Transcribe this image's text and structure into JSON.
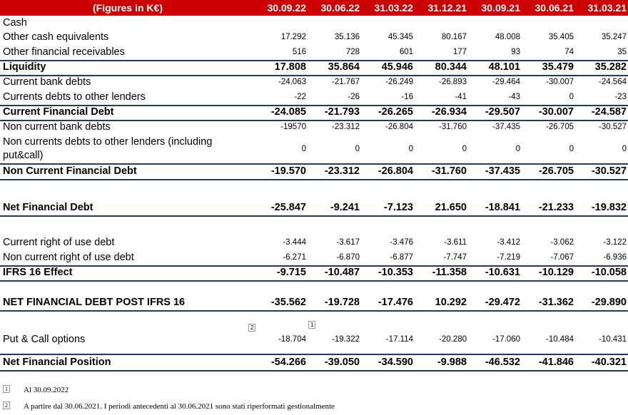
{
  "header": {
    "title": "(Figures in K€)",
    "dates": [
      "30.09.22",
      "30.06.22",
      "31.03.22",
      "31.12.21",
      "30.09.21",
      "30.06.21",
      "31.03.21"
    ]
  },
  "rows": [
    {
      "label": "Cash",
      "values": [
        "",
        "",
        "",
        "",
        "",
        "",
        ""
      ]
    },
    {
      "label": "Other cash equivalents",
      "values": [
        "17.292",
        "35.136",
        "45.345",
        "80.167",
        "48.008",
        "35.405",
        "35.247"
      ]
    },
    {
      "label": "Other financial receivables",
      "values": [
        "516",
        "728",
        "601",
        "177",
        "93",
        "74",
        "35"
      ]
    },
    {
      "label": "Liquidity",
      "values": [
        "17.808",
        "35.864",
        "45.946",
        "80.344",
        "48.101",
        "35.479",
        "35.282"
      ]
    },
    {
      "label": "Current bank debts",
      "values": [
        "-24.063",
        "-21.767",
        "-26.249",
        "-26.893",
        "-29.464",
        "-30.007",
        "-24.564"
      ]
    },
    {
      "label": "Currents debts to other lenders",
      "values": [
        "-22",
        "-26",
        "-16",
        "-41",
        "-43",
        "0",
        "-23"
      ]
    },
    {
      "label": "Current Financial Debt",
      "values": [
        "-24.085",
        "-21.793",
        "-26.265",
        "-26.934",
        "-29.507",
        "-30.007",
        "-24.587"
      ]
    },
    {
      "label": "Non current bank debts",
      "values": [
        "-19570",
        "-23.312",
        "-26.804",
        "-31.760",
        "-37.435",
        "-26.705",
        "-30.527"
      ]
    },
    {
      "label": "Non currents debts to other lenders (including put&call)",
      "values": [
        "0",
        "0",
        "0",
        "0",
        "0",
        "0",
        "0"
      ]
    },
    {
      "label": "Non Current Financial Debt",
      "values": [
        "-19.570",
        "-23.312",
        "-26.804",
        "-31.760",
        "-37.435",
        "-26.705",
        "-30.527"
      ]
    },
    {
      "label": "Net Financial Debt",
      "values": [
        "-25.847",
        "-9.241",
        "-7.123",
        "21.650",
        "-18.841",
        "-21.233",
        "-19.832"
      ]
    },
    {
      "label": "Current right of use debt",
      "values": [
        "-3.444",
        "-3.617",
        "-3.476",
        "-3.611",
        "-3.412",
        "-3.062",
        "-3.122"
      ]
    },
    {
      "label": "Non current right of use debt",
      "values": [
        "-6.271",
        "-6.870",
        "-6.877",
        "-7.747",
        "-7.219",
        "-7.067",
        "-6.936"
      ]
    },
    {
      "label": "IFRS 16 Effect",
      "values": [
        "-9.715",
        "-10.487",
        "-10.353",
        "-11.358",
        "-10.631",
        "-10.129",
        "-10.058"
      ]
    },
    {
      "label": "NET FINANCIAL DEBT POST IFRS 16",
      "values": [
        "-35.562",
        "-19.728",
        "-17.476",
        "10.292",
        "-29.472",
        "-31.362",
        "-29.890"
      ]
    },
    {
      "label": "Put & Call options",
      "values": [
        "-18.704",
        "-19.322",
        "-17.114",
        "-20.280",
        "-17.060",
        "-10.484",
        "-10.431"
      ]
    },
    {
      "label": "Net Financial Position",
      "values": [
        "-54.266",
        "-39.050",
        "-34.590",
        "-9.988",
        "-46.532",
        "-41.846",
        "-40.321"
      ]
    }
  ],
  "markers": {
    "put_call": "2",
    "first_value": "1"
  },
  "footnotes": [
    {
      "num": "1",
      "text": "Al 30.09.2022"
    },
    {
      "num": "2",
      "text": "A partire dal 30.06.2021. I periodi antecedenti al 30.06.2021 sono stati riperformati gestionalmente"
    }
  ]
}
